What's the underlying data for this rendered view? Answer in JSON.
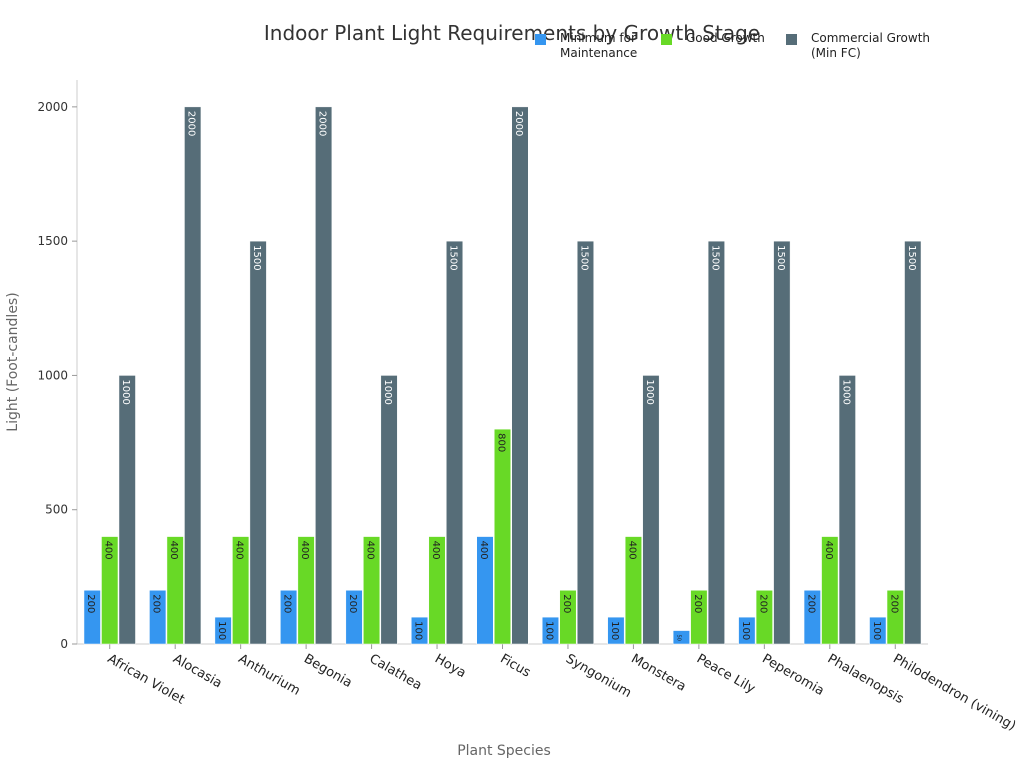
{
  "chart_data": {
    "type": "bar",
    "title": "Indoor Plant Light Requirements by Growth Stage",
    "x_label": "Plant Species",
    "y_label": "Light (Foot-candles)",
    "categories": [
      "African Violet",
      "Alocasia",
      "Anthurium",
      "Begonia",
      "Calathea",
      "Hoya",
      "Ficus",
      "Syngonium",
      "Monstera",
      "Peace Lily",
      "Peperomia",
      "Phalaenopsis",
      "Philodendron (vining)"
    ],
    "series": [
      {
        "name": "Minimum for\nMaintenance",
        "color": "#3596f0",
        "values": [
          200,
          200,
          100,
          200,
          200,
          100,
          400,
          100,
          100,
          50,
          100,
          200,
          100
        ]
      },
      {
        "name": "Good Growth",
        "color": "#68d926",
        "values": [
          400,
          400,
          400,
          400,
          400,
          400,
          800,
          200,
          400,
          200,
          200,
          400,
          200
        ]
      },
      {
        "name": "Commercial Growth\n(Min FC)",
        "color": "#566d78",
        "values": [
          1000,
          2000,
          1500,
          2000,
          1000,
          1500,
          2000,
          1500,
          1000,
          1500,
          1500,
          1000,
          1500
        ]
      }
    ],
    "ylim": [
      0,
      2100
    ],
    "yticks": [
      0,
      500,
      1000,
      1500,
      2000
    ],
    "grid": false
  }
}
